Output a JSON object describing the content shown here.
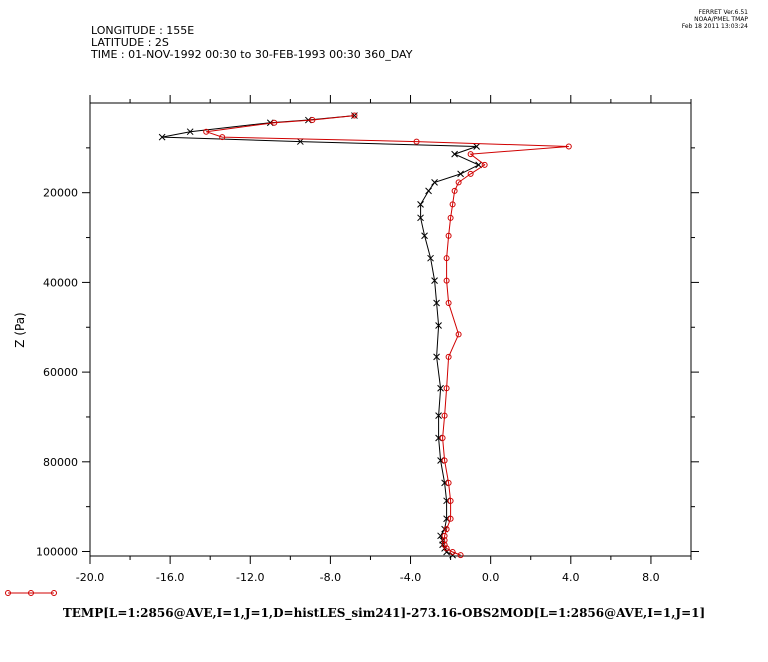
{
  "stamp": {
    "line1": "FERRET  Ver.6.51",
    "line2": "NOAA/PMEL TMAP",
    "line3": "Feb 18 2011 13:03:24"
  },
  "header": {
    "longitude": "LONGITUDE : 155E",
    "latitude": "LATITUDE : 2S",
    "time": "TIME : 01-NOV-1992 00:30 to 30-FEB-1993 00:30 360_DAY"
  },
  "footer": {
    "title": "TEMP[L=1:2856@AVE,I=1,J=1,D=histLES_sim241]-273.16-OBS2MOD[L=1:2856@AVE,I=1,J=1]"
  },
  "colors": {
    "series1": "#000000",
    "series2": "#d00000"
  },
  "chart_data": {
    "type": "line",
    "title": "",
    "xlabel": "",
    "ylabel": "Z (Pa)",
    "xlim": [
      -20,
      10
    ],
    "ylim": [
      101000,
      0
    ],
    "y_inverted": true,
    "x_ticks": [
      -20,
      -16,
      -12,
      -8,
      -4,
      0,
      4,
      8
    ],
    "x_tick_labels": [
      "-20.0",
      "-16.0",
      "-12.0",
      "-8.0",
      "-4.0",
      "0.0",
      "4.0",
      "8.0"
    ],
    "y_ticks": [
      20000,
      40000,
      60000,
      80000,
      100000
    ],
    "y_tick_labels": [
      "20000",
      "40000",
      "60000",
      "80000",
      "100000"
    ],
    "series": [
      {
        "marker": "x",
        "points": [
          [
            -6.8,
            2800
          ],
          [
            -9.1,
            3800
          ],
          [
            -11.0,
            4400
          ],
          [
            -15.0,
            6400
          ],
          [
            -16.4,
            7600
          ],
          [
            -9.5,
            8600
          ],
          [
            -0.7,
            9700
          ],
          [
            -1.8,
            11400
          ],
          [
            -0.6,
            13800
          ],
          [
            -1.5,
            15800
          ],
          [
            -2.8,
            17700
          ],
          [
            -3.1,
            19600
          ],
          [
            -3.5,
            22600
          ],
          [
            -3.5,
            25600
          ],
          [
            -3.3,
            29600
          ],
          [
            -3.0,
            34600
          ],
          [
            -2.8,
            39600
          ],
          [
            -2.7,
            44600
          ],
          [
            -2.6,
            49600
          ],
          [
            -2.7,
            56600
          ],
          [
            -2.5,
            63600
          ],
          [
            -2.6,
            69700
          ],
          [
            -2.6,
            74700
          ],
          [
            -2.5,
            79700
          ],
          [
            -2.3,
            84700
          ],
          [
            -2.2,
            88700
          ],
          [
            -2.2,
            92700
          ],
          [
            -2.3,
            95000
          ],
          [
            -2.5,
            96500
          ],
          [
            -2.4,
            97500
          ],
          [
            -2.4,
            98500
          ],
          [
            -2.3,
            99300
          ],
          [
            -2.2,
            100100
          ],
          [
            -1.9,
            100800
          ]
        ]
      },
      {
        "marker": "circle",
        "points": [
          [
            -6.8,
            2800
          ],
          [
            -8.9,
            3800
          ],
          [
            -10.8,
            4400
          ],
          [
            -14.2,
            6400
          ],
          [
            -13.4,
            7600
          ],
          [
            -3.7,
            8600
          ],
          [
            3.9,
            9700
          ],
          [
            -1.0,
            11400
          ],
          [
            -0.3,
            13800
          ],
          [
            -1.0,
            15800
          ],
          [
            -1.6,
            17700
          ],
          [
            -1.8,
            19600
          ],
          [
            -1.9,
            22600
          ],
          [
            -2.0,
            25600
          ],
          [
            -2.1,
            29600
          ],
          [
            -2.2,
            34600
          ],
          [
            -2.2,
            39600
          ],
          [
            -2.1,
            44600
          ],
          [
            -1.6,
            51600
          ],
          [
            -2.1,
            56600
          ],
          [
            -2.2,
            63600
          ],
          [
            -2.3,
            69700
          ],
          [
            -2.4,
            74700
          ],
          [
            -2.3,
            79700
          ],
          [
            -2.1,
            84700
          ],
          [
            -2.0,
            88700
          ],
          [
            -2.0,
            92700
          ],
          [
            -2.2,
            95000
          ],
          [
            -2.3,
            96500
          ],
          [
            -2.3,
            97500
          ],
          [
            -2.3,
            98500
          ],
          [
            -2.2,
            99300
          ],
          [
            -1.9,
            100100
          ],
          [
            -1.5,
            100800
          ]
        ]
      }
    ]
  }
}
